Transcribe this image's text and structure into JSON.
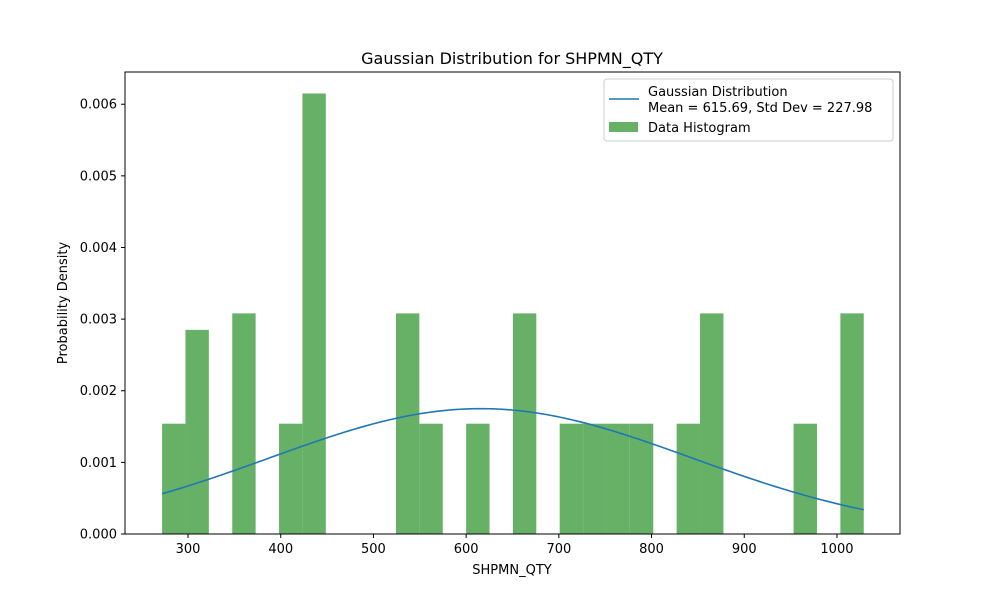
{
  "chart_data": {
    "type": "bar",
    "title": "Gaussian Distribution for SHPMN_QTY",
    "xlabel": "SHPMN_QTY",
    "ylabel": "Probability Density",
    "xlim": [
      232,
      1068
    ],
    "ylim": [
      0,
      0.00645
    ],
    "xticks": [
      300,
      400,
      500,
      600,
      700,
      800,
      900,
      1000
    ],
    "yticks": [
      0.0,
      0.001,
      0.002,
      0.003,
      0.004,
      0.005,
      0.006
    ],
    "ytick_labels": [
      "0.000",
      "0.001",
      "0.002",
      "0.003",
      "0.004",
      "0.005",
      "0.006"
    ],
    "histogram": {
      "name": "Data Histogram",
      "color": "#67b167",
      "bin_start": 272,
      "bin_width": 25.23,
      "values": [
        0.00154,
        0.00285,
        0,
        0.00308,
        0,
        0.00154,
        0.00615,
        0,
        0,
        0,
        0.00308,
        0.00154,
        0,
        0.00154,
        0,
        0.00308,
        0,
        0.00154,
        0.00154,
        0.00154,
        0.00154,
        0,
        0.00154,
        0.00308,
        0,
        0,
        0,
        0.00154,
        0,
        0.00308
      ]
    },
    "gaussian": {
      "name": "Gaussian Distribution",
      "color": "#1f77b4",
      "mean": 615.69,
      "std": 227.98,
      "x_range": [
        272,
        1029
      ]
    },
    "legend": {
      "position": "top-right",
      "line1": "Gaussian Distribution",
      "line2": "Mean = 615.69, Std Dev = 227.98",
      "line3": "Data Histogram"
    }
  }
}
